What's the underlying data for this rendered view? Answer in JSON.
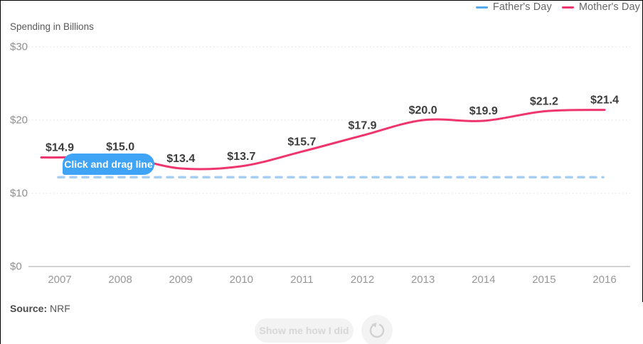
{
  "legend": [
    {
      "label": "Father's Day",
      "color": "#56a9ec"
    },
    {
      "label": "Mother's Day",
      "color": "#ef356d"
    }
  ],
  "axis_title": "Spending in Billions",
  "tooltip_text": "Click and drag line",
  "source_label": "Source:",
  "source_value": "NRF",
  "buttons": {
    "show": "Show me how I did",
    "reset_icon": "reset-counterclockwise-icon"
  },
  "colors": {
    "mothers_day_line": "#ef356d",
    "fathers_day_drawn_line": "#a6cdf2",
    "tooltip_bg": "#3fa3f6",
    "grid": "#dcdcdc",
    "axis": "#c4c4c4"
  },
  "chart_data": {
    "type": "line",
    "x": [
      2007,
      2008,
      2009,
      2010,
      2011,
      2012,
      2013,
      2014,
      2015,
      2016
    ],
    "series": [
      {
        "name": "Mother's Day",
        "values": [
          14.9,
          15.0,
          13.4,
          13.7,
          15.7,
          17.9,
          20.0,
          19.9,
          21.2,
          21.4
        ],
        "labels": [
          "$14.9",
          "$15.0",
          "$13.4",
          "$13.7",
          "$15.7",
          "$17.9",
          "$20.0",
          "$19.9",
          "$21.2",
          "$21.4"
        ],
        "color": "#ef356d",
        "style": "solid"
      },
      {
        "name": "Father's Day (user-drawn guess, incomplete)",
        "values": [
          12.2,
          12.2,
          12.2,
          12.2,
          12.2,
          12.2,
          12.2,
          12.2,
          12.2,
          12.2
        ],
        "labels": [],
        "color": "#a6cdf2",
        "style": "dashed"
      }
    ],
    "title": "",
    "xlabel": "",
    "ylabel": "Spending in Billions",
    "ylim": [
      0,
      30
    ],
    "yticks": [
      {
        "value": 0,
        "label": "$0"
      },
      {
        "value": 10,
        "label": "$10"
      },
      {
        "value": 20,
        "label": "$20"
      },
      {
        "value": 30,
        "label": "$30"
      }
    ],
    "grid": "dotted-horizontal",
    "legend_position": "top-right"
  }
}
